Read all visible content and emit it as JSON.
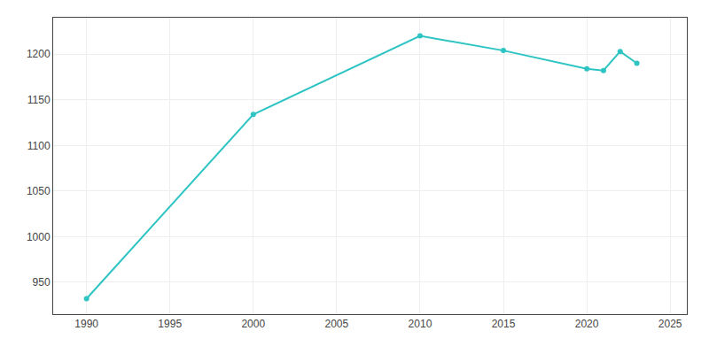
{
  "chart_data": {
    "type": "line",
    "x": [
      1990,
      2000,
      2010,
      2015,
      2020,
      2021,
      2022,
      2023
    ],
    "values": [
      932,
      1134,
      1220,
      1204,
      1184,
      1182,
      1203,
      1190
    ],
    "color": "#2ec4c4",
    "marker": "circle",
    "xlim": [
      1988,
      2026
    ],
    "ylim": [
      915,
      1240
    ],
    "xticks": [
      1990,
      1995,
      2000,
      2005,
      2010,
      2015,
      2020,
      2025
    ],
    "yticks": [
      950,
      1000,
      1050,
      1100,
      1150,
      1200
    ],
    "grid": true
  }
}
